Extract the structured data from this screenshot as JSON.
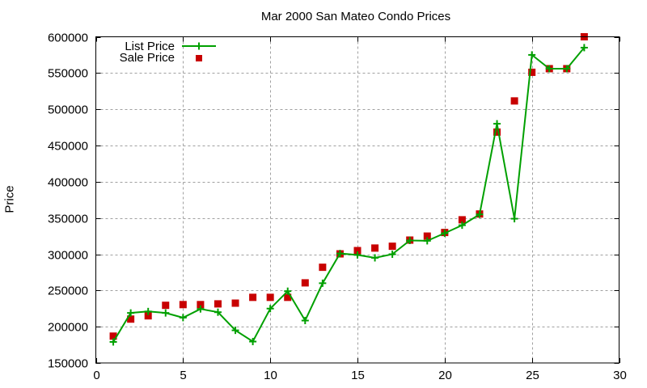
{
  "chart_data": {
    "type": "line",
    "title": "Mar 2000 San Mateo Condo Prices",
    "xlabel": "",
    "ylabel": "Price",
    "xlim": [
      0,
      30
    ],
    "ylim": [
      150000,
      600000
    ],
    "xticks": [
      0,
      5,
      10,
      15,
      20,
      25,
      30
    ],
    "yticks": [
      150000,
      200000,
      250000,
      300000,
      350000,
      400000,
      450000,
      500000,
      550000,
      600000
    ],
    "grid": true,
    "legend_position": "top-left",
    "x": [
      1,
      2,
      3,
      4,
      5,
      6,
      7,
      8,
      9,
      10,
      11,
      12,
      13,
      14,
      15,
      16,
      17,
      18,
      19,
      20,
      21,
      22,
      23,
      24,
      25,
      26,
      27,
      28
    ],
    "series": [
      {
        "name": "List Price",
        "style": "linespoints",
        "marker": "plus",
        "color": "#00a000",
        "values": [
          179000,
          219000,
          221000,
          219000,
          212500,
          224500,
          220000,
          195000,
          179500,
          225000,
          249000,
          208500,
          260000,
          301000,
          299000,
          295000,
          300000,
          319000,
          318500,
          329000,
          340000,
          355000,
          480000,
          349000,
          575000,
          556000,
          556000,
          585000
        ]
      },
      {
        "name": "Sale Price",
        "style": "points",
        "marker": "square",
        "color": "#c80000",
        "values": [
          187000,
          210500,
          215000,
          229500,
          230500,
          230500,
          231500,
          232500,
          240500,
          240500,
          240500,
          260500,
          282000,
          300500,
          305000,
          308500,
          311000,
          319500,
          325000,
          330000,
          347500,
          355500,
          468500,
          511500,
          551000,
          556000,
          556000,
          600000
        ]
      }
    ]
  }
}
